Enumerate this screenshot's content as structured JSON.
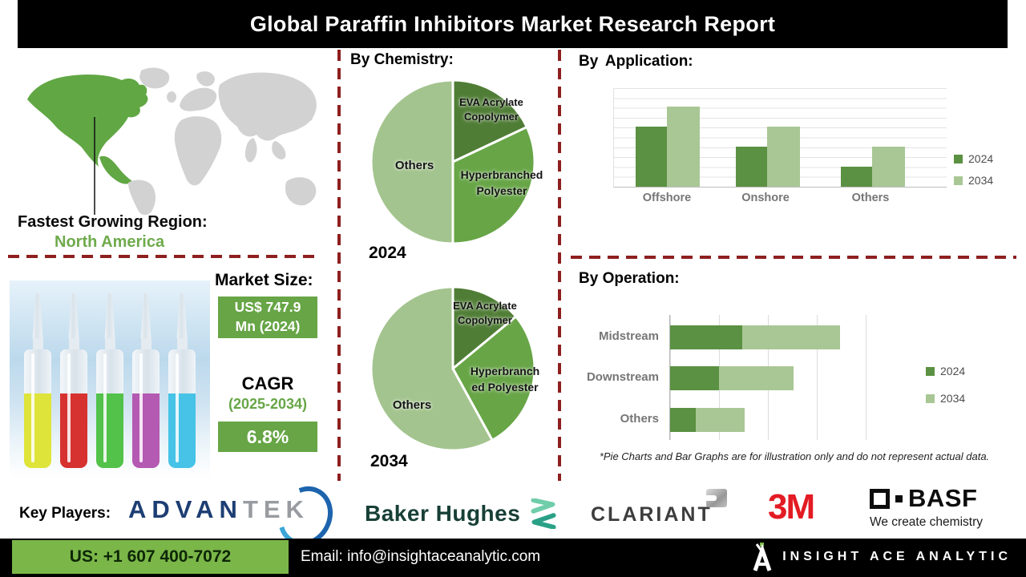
{
  "header": {
    "title": "Global Paraffin Inhibitors Market Research Report"
  },
  "region": {
    "label": "Fastest Growing Region:",
    "value": "North America"
  },
  "market": {
    "size_label": "Market Size:",
    "size_line1": "US$ 747.9",
    "size_line2": "Mn (2024)",
    "cagr_label": "CAGR",
    "cagr_period": "(2025-2034)",
    "cagr_value": "6.8%"
  },
  "chemistry": {
    "title": "By Chemistry:",
    "pie2024": {
      "year": "2024",
      "labels": {
        "eva_l1": "EVA Acrylate",
        "eva_l2": "Copolymer",
        "hyper_l1": "Hyperbranched",
        "hyper_l2": "Polyester",
        "others": "Others"
      }
    },
    "pie2034": {
      "year": "2034",
      "labels": {
        "eva_l1": "EVA Acrylate",
        "eva_l2": "Copolymer",
        "hyper_l1": "Hyperbranch",
        "hyper_l2": "ed Polyester",
        "others": "Others"
      }
    }
  },
  "application": {
    "title": "By Application:",
    "categories": [
      "Offshore",
      "Onshore",
      "Others"
    ],
    "legend": [
      "2024",
      "2034"
    ]
  },
  "operation": {
    "title": "By Operation:",
    "categories": [
      "Midstream",
      "Downstream",
      "Others"
    ],
    "legend": [
      "2024",
      "2034"
    ]
  },
  "footnote": "*Pie Charts and Bar Graphs are for illustration only and do not represent actual data.",
  "key_players": {
    "label": "Key Players:",
    "advantek_part1": "ADVAN",
    "advantek_part2": "TEK",
    "baker_hughes": "Baker Hughes",
    "clariant": "CLARIANT",
    "mmm": "3M",
    "basf": "BASF",
    "basf_tagline": "We create chemistry"
  },
  "footer": {
    "phone": "US: +1 607 400-7072",
    "email": "Email: info@insightaceanalytic.com",
    "brand": "INSIGHT ACE ANALYTIC"
  },
  "colors": {
    "pie_dark_green": "#4f7d35",
    "pie_mid_green": "#67a546",
    "pie_light_green": "#a3c48e",
    "bar_green_2024": "#5b9142",
    "bar_green_2034": "#a9c795",
    "dashed_line_red": "#8e1f1f",
    "footer_green": "#7ab648",
    "map_green": "#61a744",
    "map_gray": "#d2d2d2"
  },
  "illustration": {
    "ampoule_colors": [
      "#dfe43a",
      "#d63230",
      "#52c24a",
      "#b45ab2",
      "#46c3e6"
    ]
  },
  "chart_data": [
    {
      "type": "pie",
      "title": "By Chemistry: 2024",
      "labels": [
        "EVA Acrylate Copolymer",
        "Hyperbranched Polyester",
        "Others"
      ],
      "values": [
        18,
        32,
        50
      ],
      "colors": [
        "#4f7d35",
        "#67a546",
        "#a3c48e"
      ],
      "note": "illustrative only"
    },
    {
      "type": "pie",
      "title": "By Chemistry: 2034",
      "labels": [
        "EVA Acrylate Copolymer",
        "Hyperbranched Polyester",
        "Others"
      ],
      "values": [
        14,
        28,
        58
      ],
      "colors": [
        "#4f7d35",
        "#67a546",
        "#a3c48e"
      ],
      "note": "illustrative only"
    },
    {
      "type": "bar",
      "title": "By Application",
      "categories": [
        "Offshore",
        "Onshore",
        "Others"
      ],
      "series": [
        {
          "name": "2024",
          "values": [
            75,
            50,
            25
          ]
        },
        {
          "name": "2034",
          "values": [
            100,
            75,
            50
          ]
        }
      ],
      "ylim": [
        0,
        122
      ],
      "grid": true,
      "legend_position": "right",
      "note": "illustrative only, no axis labels shown"
    },
    {
      "type": "bar",
      "title": "By Operation",
      "orientation": "horizontal",
      "stacked": true,
      "categories": [
        "Midstream",
        "Downstream",
        "Others"
      ],
      "series": [
        {
          "name": "2024",
          "values": [
            37,
            25,
            13
          ]
        },
        {
          "name": "2034",
          "values": [
            50,
            38,
            25
          ]
        }
      ],
      "xlim": [
        0,
        125
      ],
      "grid": true,
      "legend_position": "right",
      "note": "illustrative only, no axis labels shown"
    }
  ]
}
